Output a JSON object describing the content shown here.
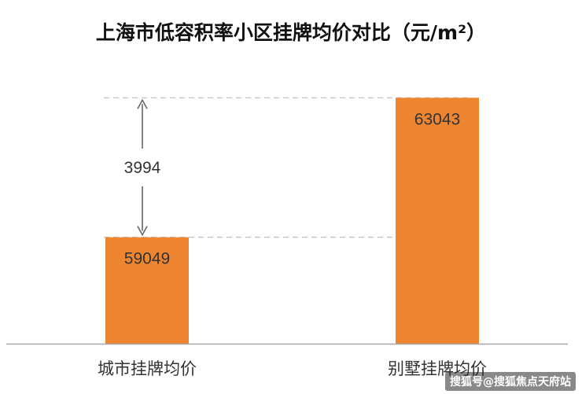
{
  "chart_data": {
    "type": "bar",
    "title": "上海市低容积率小区挂牌均价对比（元/m²）",
    "categories": [
      "城市挂牌均价",
      "别墅挂牌均价"
    ],
    "values": [
      59049,
      63043
    ],
    "annotation": {
      "label": "3994"
    },
    "ylim": [
      56000,
      63500
    ],
    "grid": false
  },
  "colors": {
    "bar": "#ee8530",
    "axis": "#a6a6a6",
    "guide": "#bfbfbf",
    "arrow": "#666666"
  },
  "watermark": "搜狐号@搜狐焦点天府站"
}
